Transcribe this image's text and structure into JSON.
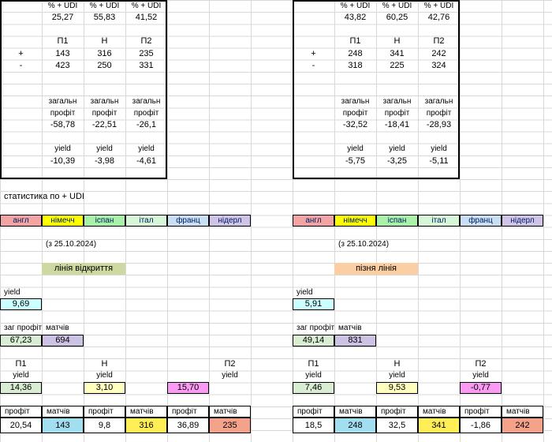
{
  "labels": {
    "udi": "% + UDI",
    "p1": "П1",
    "h": "Н",
    "p2": "П2",
    "plus": "+",
    "minus": "-",
    "total_word1": "загальн",
    "total_word2": "профіт",
    "yield": "yield",
    "stats_title": "статистика по + UDI",
    "total_profit": "заг профіт",
    "matches": "матчів",
    "profit": "профіт"
  },
  "boxes": {
    "left": {
      "udi_values": [
        "25,27",
        "55,83",
        "41,52"
      ],
      "plus_values": [
        "143",
        "316",
        "235"
      ],
      "minus_values": [
        "423",
        "250",
        "331"
      ],
      "total_values": [
        "-58,78",
        "-22,51",
        "-26,1"
      ],
      "yield_values": [
        "-10,39",
        "-3,98",
        "-4,61"
      ]
    },
    "right": {
      "udi_values": [
        "43,82",
        "60,25",
        "42,76"
      ],
      "plus_values": [
        "248",
        "341",
        "242"
      ],
      "minus_values": [
        "318",
        "225",
        "324"
      ],
      "total_values": [
        "-32,52",
        "-18,41",
        "-28,93"
      ],
      "yield_values": [
        "-5,75",
        "-3,25",
        "-5,11"
      ]
    }
  },
  "tabs": {
    "labels": [
      "англ",
      "німечч",
      "іспан",
      "італ",
      "франц",
      "нідерл"
    ],
    "colors": [
      "#f2a3a3",
      "#ffff00",
      "#a9f0a9",
      "#d7f5d7",
      "#c9ddf3",
      "#cfc3e8"
    ]
  },
  "panels": {
    "left": {
      "date_note": "(з 25.10.2024)",
      "line_label": "лінія відкриття",
      "line_color": "#cdd9a0",
      "yield_value": "9,69",
      "total_profit_value": "67,23",
      "matches_value": "694",
      "yield_values": [
        "14,36",
        "3,10",
        "15,70"
      ],
      "bottom_profits": [
        "20,54",
        "9,8",
        "36,89"
      ],
      "bottom_matches": [
        "143",
        "316",
        "235"
      ]
    },
    "right": {
      "date_note": "(з 25.10.2024)",
      "line_label": "пізня лінія",
      "line_color": "#fbcfa3",
      "yield_value": "5,91",
      "total_profit_value": "49,14",
      "matches_value": "831",
      "yield_values": [
        "7,46",
        "9,53",
        "-0,77"
      ],
      "bottom_profits": [
        "18,5",
        "32,5",
        "-1,86"
      ],
      "bottom_matches": [
        "248",
        "341",
        "242"
      ]
    }
  },
  "cell_colors": {
    "pale_cyan": "#ccffff",
    "green": "#d9edd2",
    "purple": "#ccc2e4",
    "pale_yellow": "#ffffbf",
    "magenta": "#fa9af2",
    "cyan": "#a3ddf0",
    "yellow": "#ffee55",
    "salmon": "#f5a28b",
    "white": "#ffffff"
  }
}
